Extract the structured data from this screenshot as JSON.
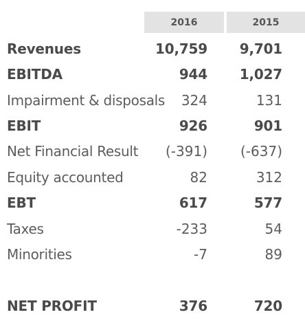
{
  "columns": [
    "2016",
    "2015"
  ],
  "rows": [
    {
      "label": "Revenues",
      "v2016": "10,759",
      "v2015": "9,701",
      "bold": true
    },
    {
      "label": "EBITDA",
      "v2016": "944",
      "v2015": "1,027",
      "bold": true
    },
    {
      "label": "Impairment & disposals",
      "v2016": "324",
      "v2015": "131",
      "bold": false
    },
    {
      "label": "EBIT",
      "v2016": "926",
      "v2015": "901",
      "bold": true
    },
    {
      "label": "Net Financial Result",
      "v2016": "(-391)",
      "v2015": "(-637)",
      "bold": false
    },
    {
      "label": "Equity accounted",
      "v2016": "82",
      "v2015": "312",
      "bold": false
    },
    {
      "label": "EBT",
      "v2016": "617",
      "v2015": "577",
      "bold": true
    },
    {
      "label": "Taxes",
      "v2016": "-233",
      "v2015": "54",
      "bold": false
    },
    {
      "label": "Minorities",
      "v2016": "-7",
      "v2015": "89",
      "bold": false
    },
    {
      "label": "NET PROFIT",
      "v2016": "376",
      "v2015": "720",
      "bold": true
    }
  ]
}
